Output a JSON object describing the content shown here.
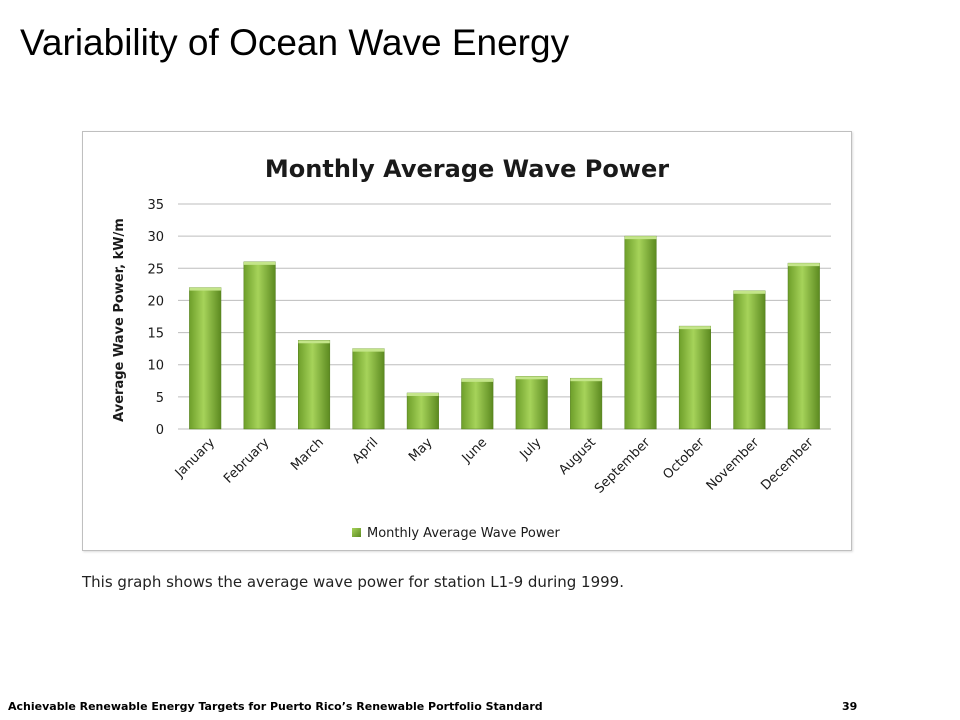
{
  "slide": {
    "title": "Variability of Ocean Wave Energy",
    "caption": "This graph shows the average wave power for station L1-9 during 1999.",
    "footer": "Achievable Renewable Energy Targets for Puerto Rico’s Renewable Portfolio Standard",
    "page_number": "39"
  },
  "chart_data": {
    "type": "bar",
    "title": "Monthly Average Wave Power",
    "xlabel": "",
    "ylabel": "Average Wave Power, kW/m",
    "ylim": [
      0,
      35
    ],
    "yticks": [
      "0",
      "5",
      "10",
      "15",
      "20",
      "25",
      "30",
      "35"
    ],
    "grid": true,
    "legend_position": "bottom",
    "categories": [
      "January",
      "February",
      "March",
      "April",
      "May",
      "June",
      "July",
      "August",
      "September",
      "October",
      "November",
      "December"
    ],
    "series": [
      {
        "name": "Monthly Average Wave Power",
        "color": "#8dc63f",
        "values": [
          22,
          26,
          13.8,
          12.5,
          5.6,
          7.8,
          8.2,
          7.9,
          30,
          16,
          21.5,
          25.8
        ]
      }
    ]
  }
}
